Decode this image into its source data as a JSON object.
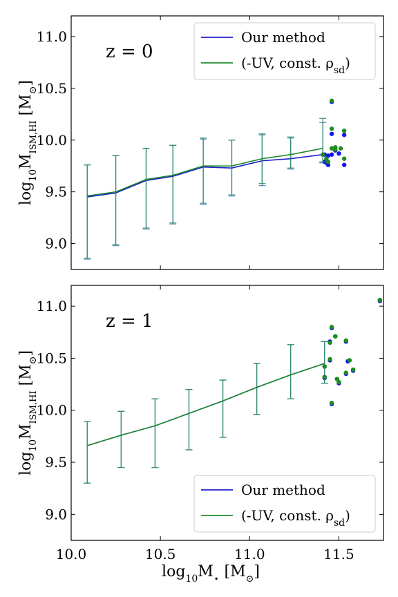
{
  "chart_data": [
    {
      "type": "line",
      "panel_label": "z = 0",
      "xlim": [
        10.0,
        11.75
      ],
      "ylim": [
        8.75,
        11.2
      ],
      "xticks": [
        10.0,
        10.5,
        11.0,
        11.5
      ],
      "yticks": [
        9.0,
        9.5,
        10.0,
        10.5,
        11.0
      ],
      "ylabel": {
        "main": "log",
        "sub1": "10",
        "main2": "M",
        "sub2": "ISM,HI",
        "unit": " [M",
        "unit_sub": "⊙",
        "unit_end": "]"
      },
      "series": [
        {
          "name": "Our method",
          "color": "#1f1fcc",
          "x": [
            10.09,
            10.25,
            10.42,
            10.57,
            10.74,
            10.9,
            11.07,
            11.23,
            11.41
          ],
          "y": [
            9.45,
            9.49,
            9.61,
            9.65,
            9.74,
            9.73,
            9.8,
            9.82,
            9.86
          ],
          "err_lo": [
            8.85,
            8.98,
            9.14,
            9.19,
            9.38,
            9.46,
            9.56,
            9.72,
            9.78
          ],
          "err_hi": [
            9.76,
            9.85,
            9.92,
            9.95,
            10.01,
            10.0,
            10.05,
            10.02,
            10.17
          ],
          "scatter": [
            [
              11.46,
              10.37
            ],
            [
              11.46,
              10.06
            ],
            [
              11.53,
              10.05
            ],
            [
              11.42,
              9.86
            ],
            [
              11.44,
              9.85
            ],
            [
              11.46,
              9.86
            ],
            [
              11.48,
              9.9
            ],
            [
              11.5,
              9.87
            ],
            [
              11.43,
              9.78
            ],
            [
              11.44,
              9.76
            ],
            [
              11.42,
              9.79
            ],
            [
              11.53,
              9.76
            ]
          ]
        },
        {
          "name": "(-UV, const. ρsd)",
          "color": "#1f8a2e",
          "x": [
            10.09,
            10.25,
            10.42,
            10.57,
            10.74,
            10.9,
            11.07,
            11.23,
            11.41
          ],
          "y": [
            9.46,
            9.5,
            9.62,
            9.66,
            9.75,
            9.75,
            9.82,
            9.86,
            9.92
          ],
          "err_lo": [
            8.86,
            8.99,
            9.15,
            9.2,
            9.39,
            9.47,
            9.58,
            9.73,
            9.79
          ],
          "err_hi": [
            9.76,
            9.85,
            9.92,
            9.95,
            10.02,
            10.0,
            10.06,
            10.03,
            10.21
          ],
          "scatter": [
            [
              11.46,
              10.38
            ],
            [
              11.46,
              10.11
            ],
            [
              11.53,
              10.09
            ],
            [
              11.41,
              9.86
            ],
            [
              11.46,
              9.92
            ],
            [
              11.48,
              9.93
            ],
            [
              11.51,
              9.92
            ],
            [
              11.43,
              9.82
            ],
            [
              11.44,
              9.79
            ],
            [
              11.53,
              9.82
            ],
            [
              11.48,
              9.91
            ]
          ]
        }
      ],
      "legend": {
        "placement": "top-right",
        "items": [
          "Our method",
          "(-UV, const. ρ",
          "sd",
          ")"
        ]
      }
    },
    {
      "type": "line",
      "panel_label": "z = 1",
      "xlim": [
        10.0,
        11.75
      ],
      "ylim": [
        8.75,
        11.2
      ],
      "xticks": [
        10.0,
        10.5,
        11.0,
        11.5
      ],
      "yticks": [
        9.0,
        9.5,
        10.0,
        10.5,
        11.0
      ],
      "xlabel": {
        "main": "log",
        "sub1": "10",
        "main2": "M",
        "sub2": "⋆",
        "unit": " [M",
        "unit_sub": "⊙",
        "unit_end": "]"
      },
      "series": [
        {
          "name": "Our method",
          "color": "#1f1fcc",
          "x": [
            10.09,
            10.28,
            10.47,
            10.66,
            10.85,
            11.04,
            11.23,
            11.42
          ],
          "y": [
            9.66,
            9.76,
            9.85,
            9.97,
            10.09,
            10.22,
            10.34,
            10.45
          ],
          "err_lo": [
            9.3,
            9.45,
            9.45,
            9.62,
            9.74,
            9.96,
            10.11,
            10.26
          ],
          "err_hi": [
            9.89,
            9.99,
            10.11,
            10.2,
            10.29,
            10.45,
            10.63,
            10.66
          ],
          "scatter": [
            [
              11.73,
              11.05
            ],
            [
              11.46,
              10.79
            ],
            [
              11.48,
              10.71
            ],
            [
              11.45,
              10.66
            ],
            [
              11.54,
              10.66
            ],
            [
              11.55,
              10.47
            ],
            [
              11.45,
              10.48
            ],
            [
              11.42,
              10.42
            ],
            [
              11.58,
              10.38
            ],
            [
              11.54,
              10.35
            ],
            [
              11.49,
              10.3
            ],
            [
              11.5,
              10.26
            ],
            [
              11.42,
              10.31
            ],
            [
              11.46,
              10.06
            ]
          ]
        },
        {
          "name": "(-UV, const. ρsd)",
          "color": "#1f8a2e",
          "x": [
            10.09,
            10.28,
            10.47,
            10.66,
            10.85,
            11.04,
            11.23,
            11.42
          ],
          "y": [
            9.66,
            9.76,
            9.85,
            9.97,
            10.09,
            10.22,
            10.34,
            10.45
          ],
          "err_lo": [
            9.3,
            9.45,
            9.45,
            9.62,
            9.74,
            9.96,
            10.11,
            10.26
          ],
          "err_hi": [
            9.89,
            9.99,
            10.11,
            10.2,
            10.29,
            10.45,
            10.63,
            10.66
          ],
          "scatter": [
            [
              11.73,
              11.06
            ],
            [
              11.46,
              10.8
            ],
            [
              11.48,
              10.71
            ],
            [
              11.45,
              10.65
            ],
            [
              11.54,
              10.67
            ],
            [
              11.56,
              10.48
            ],
            [
              11.45,
              10.49
            ],
            [
              11.42,
              10.42
            ],
            [
              11.58,
              10.39
            ],
            [
              11.54,
              10.36
            ],
            [
              11.49,
              10.3
            ],
            [
              11.5,
              10.27
            ],
            [
              11.42,
              10.32
            ],
            [
              11.46,
              10.07
            ]
          ]
        }
      ],
      "legend": {
        "placement": "bottom-right",
        "items": [
          "Our method",
          "(-UV, const. ρ",
          "sd",
          ")"
        ]
      }
    }
  ]
}
